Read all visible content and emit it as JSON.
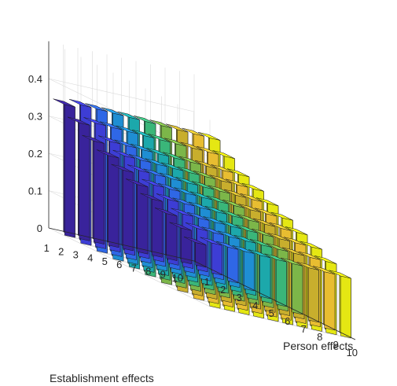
{
  "chart_data": {
    "type": "bar3d",
    "x_label": "Person effects",
    "y_label": "Establishment effects",
    "x_ticks": [
      "1",
      "2",
      "3",
      "4",
      "5",
      "6",
      "7",
      "8",
      "9",
      "10"
    ],
    "y_ticks": [
      "1",
      "2",
      "3",
      "4",
      "5",
      "6",
      "7",
      "8",
      "9",
      "10"
    ],
    "z_ticks": [
      "0",
      "0.1",
      "0.2",
      "0.3",
      "0.4"
    ],
    "zlim": [
      0,
      0.5
    ],
    "grid": true,
    "colormap": [
      "#3e26a8",
      "#4346f0",
      "#2e7cfd",
      "#1ba9d9",
      "#22c2a1",
      "#63cb5f",
      "#cfba2f",
      "#fcc839",
      "#f9fb15"
    ],
    "values": [
      [
        0.35,
        0.37,
        0.38,
        0.39,
        0.4,
        0.41,
        0.42,
        0.43,
        0.44,
        0.45
      ],
      [
        0.31,
        0.33,
        0.34,
        0.35,
        0.36,
        0.37,
        0.38,
        0.39,
        0.4,
        0.41
      ],
      [
        0.27,
        0.29,
        0.3,
        0.31,
        0.32,
        0.33,
        0.34,
        0.35,
        0.36,
        0.37
      ],
      [
        0.24,
        0.26,
        0.27,
        0.28,
        0.29,
        0.3,
        0.31,
        0.32,
        0.33,
        0.34
      ],
      [
        0.21,
        0.23,
        0.24,
        0.25,
        0.26,
        0.27,
        0.28,
        0.29,
        0.3,
        0.31
      ],
      [
        0.18,
        0.2,
        0.21,
        0.22,
        0.23,
        0.24,
        0.25,
        0.26,
        0.27,
        0.28
      ],
      [
        0.15,
        0.17,
        0.18,
        0.19,
        0.2,
        0.21,
        0.22,
        0.23,
        0.24,
        0.25
      ],
      [
        0.12,
        0.14,
        0.15,
        0.16,
        0.17,
        0.18,
        0.19,
        0.2,
        0.21,
        0.22
      ],
      [
        0.09,
        0.11,
        0.12,
        0.13,
        0.14,
        0.15,
        0.16,
        0.17,
        0.18,
        0.19
      ],
      [
        0.06,
        0.08,
        0.09,
        0.1,
        0.11,
        0.12,
        0.13,
        0.14,
        0.15,
        0.16
      ]
    ]
  }
}
